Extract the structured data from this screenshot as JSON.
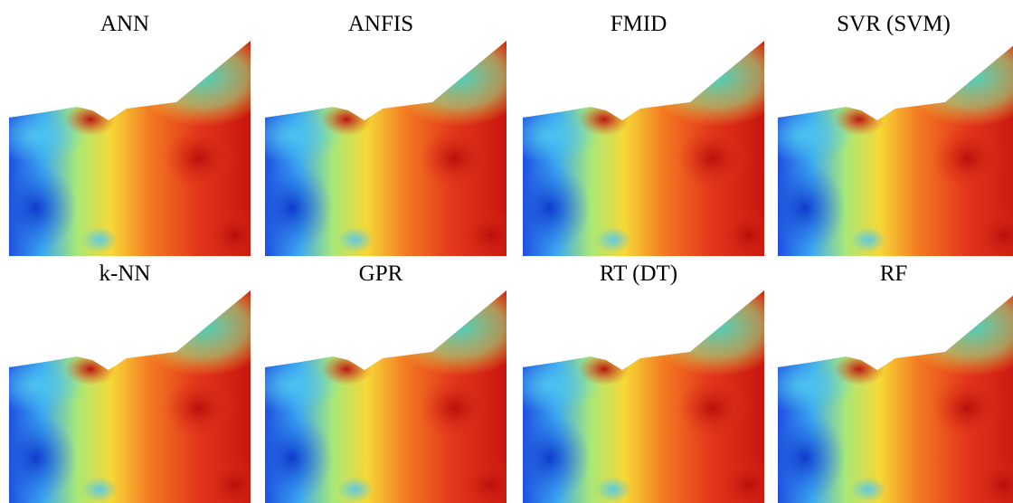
{
  "panels": [
    {
      "title": "ANN"
    },
    {
      "title": "ANFIS"
    },
    {
      "title": "FMID"
    },
    {
      "title": "SVR (SVM)"
    },
    {
      "title": "k-NN"
    },
    {
      "title": "GPR"
    },
    {
      "title": "RT (DT)"
    },
    {
      "title": "RF"
    }
  ]
}
